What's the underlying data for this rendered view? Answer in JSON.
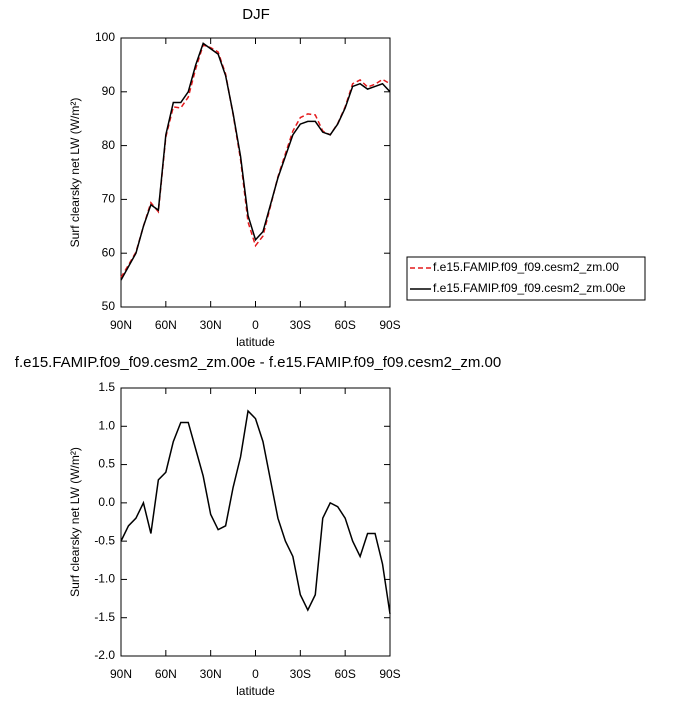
{
  "chart_data": [
    {
      "type": "line",
      "title": "DJF",
      "xlabel": "latitude",
      "ylabel": "Surf clearsky net LW (W/m²)",
      "x": [
        90,
        85,
        80,
        75,
        70,
        65,
        60,
        55,
        50,
        45,
        40,
        35,
        30,
        25,
        20,
        15,
        10,
        5,
        0,
        -5,
        -10,
        -15,
        -20,
        -25,
        -30,
        -35,
        -40,
        -45,
        -50,
        -55,
        -60,
        -65,
        -70,
        -75,
        -80,
        -85,
        -90
      ],
      "xlim": [
        90,
        -90
      ],
      "xticks": [
        {
          "value": 90,
          "label": "90N"
        },
        {
          "value": 60,
          "label": "60N"
        },
        {
          "value": 30,
          "label": "30N"
        },
        0,
        {
          "value": -30,
          "label": "30S"
        },
        {
          "value": -60,
          "label": "60S"
        },
        {
          "value": -90,
          "label": "90S"
        }
      ],
      "ylim": [
        50,
        100
      ],
      "yticks": [
        50,
        60,
        70,
        80,
        90,
        100
      ],
      "legend": "right",
      "series": [
        {
          "name": "f.e15.FAMIP.f09_f09.cesm2_zm.00",
          "color": "#e41a1c",
          "dash": "dashed",
          "values": [
            55.5,
            57.8,
            60.2,
            65,
            69.4,
            67.7,
            81.6,
            87.2,
            87,
            89,
            94.3,
            98.7,
            98.2,
            97.4,
            93.3,
            85.8,
            77.4,
            65.8,
            61.4,
            63.2,
            68.7,
            74.2,
            78.5,
            82.7,
            85.2,
            85.9,
            85.7,
            82.7,
            82,
            84.1,
            87.2,
            91.5,
            92.2,
            90.9,
            91.4,
            92.3,
            91.5
          ]
        },
        {
          "name": "f.e15.FAMIP.f09_f09.cesm2_zm.00e",
          "color": "#000000",
          "dash": "solid",
          "values": [
            55,
            57.5,
            60,
            65,
            69,
            68,
            82,
            88,
            88,
            90,
            95,
            99,
            98,
            97,
            93,
            86,
            78,
            67,
            62.5,
            64,
            69,
            74,
            78,
            82,
            84,
            84.5,
            84.5,
            82.5,
            82,
            84,
            87,
            91,
            91.5,
            90.5,
            91,
            91.5,
            90
          ]
        }
      ]
    },
    {
      "type": "line",
      "title": "f.e15.FAMIP.f09_f09.cesm2_zm.00e - f.e15.FAMIP.f09_f09.cesm2_zm.00",
      "xlabel": "latitude",
      "ylabel": "Surf clearsky net LW (W/m²)",
      "x": [
        90,
        85,
        80,
        75,
        70,
        65,
        60,
        55,
        50,
        45,
        40,
        35,
        30,
        25,
        20,
        15,
        10,
        5,
        0,
        -5,
        -10,
        -15,
        -20,
        -25,
        -30,
        -35,
        -40,
        -45,
        -50,
        -55,
        -60,
        -65,
        -70,
        -75,
        -80,
        -85,
        -90
      ],
      "xlim": [
        90,
        -90
      ],
      "xticks": [
        {
          "value": 90,
          "label": "90N"
        },
        {
          "value": 60,
          "label": "60N"
        },
        {
          "value": 30,
          "label": "30N"
        },
        0,
        {
          "value": -30,
          "label": "30S"
        },
        {
          "value": -60,
          "label": "60S"
        },
        {
          "value": -90,
          "label": "90S"
        }
      ],
      "ylim": [
        -2,
        1.5
      ],
      "yticks": [
        {
          "value": -2,
          "label": "-2.0"
        },
        -1.5,
        {
          "value": -1,
          "label": "-1.0"
        },
        -0.5,
        {
          "value": 0,
          "label": "0.0"
        },
        0.5,
        {
          "value": 1,
          "label": "1.0"
        },
        1.5
      ],
      "series": [
        {
          "color": "#000000",
          "dash": "solid",
          "values": [
            -0.5,
            -0.3,
            -0.2,
            0,
            -0.4,
            0.3,
            0.4,
            0.8,
            1.05,
            1.05,
            0.7,
            0.35,
            -0.15,
            -0.35,
            -0.3,
            0.2,
            0.6,
            1.2,
            1.1,
            0.8,
            0.3,
            -0.2,
            -0.5,
            -0.7,
            -1.2,
            -1.4,
            -1.2,
            -0.2,
            0,
            -0.05,
            -0.2,
            -0.5,
            -0.7,
            -0.4,
            -0.4,
            -0.8,
            -1.45
          ]
        }
      ]
    }
  ]
}
